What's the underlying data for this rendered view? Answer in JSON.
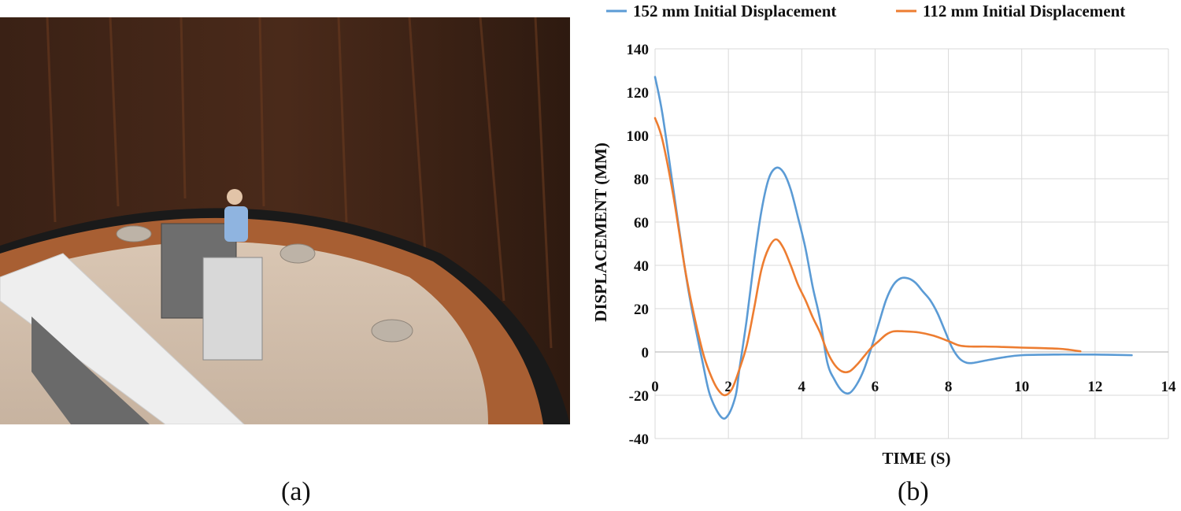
{
  "captions": {
    "a": "(a)",
    "b": "(b)"
  },
  "chart_data": {
    "type": "line",
    "xlabel": "TIME (S)",
    "ylabel": "DISPLACEMENT (MM)",
    "xlim": [
      0,
      14
    ],
    "ylim": [
      -40,
      140
    ],
    "x_ticks": [
      0,
      2,
      4,
      6,
      8,
      10,
      12,
      14
    ],
    "y_ticks": [
      -40,
      -20,
      0,
      20,
      40,
      60,
      80,
      100,
      120,
      140
    ],
    "grid": true,
    "legend_position": "top",
    "series": [
      {
        "name": "152 mm Initial Displacement",
        "color": "#5b9bd5",
        "points": [
          [
            0,
            127
          ],
          [
            0.2,
            110
          ],
          [
            0.5,
            75
          ],
          [
            0.8,
            40
          ],
          [
            1.0,
            20
          ],
          [
            1.3,
            -5
          ],
          [
            1.5,
            -20
          ],
          [
            1.8,
            -30
          ],
          [
            2.0,
            -29
          ],
          [
            2.2,
            -20
          ],
          [
            2.3,
            -8
          ],
          [
            2.5,
            15
          ],
          [
            2.7,
            42
          ],
          [
            2.9,
            65
          ],
          [
            3.1,
            80
          ],
          [
            3.3,
            85
          ],
          [
            3.5,
            83
          ],
          [
            3.7,
            75
          ],
          [
            3.9,
            62
          ],
          [
            4.1,
            48
          ],
          [
            4.3,
            30
          ],
          [
            4.5,
            15
          ],
          [
            4.7,
            -5
          ],
          [
            4.9,
            -13
          ],
          [
            5.1,
            -18
          ],
          [
            5.3,
            -19
          ],
          [
            5.5,
            -15
          ],
          [
            5.7,
            -8
          ],
          [
            5.9,
            2
          ],
          [
            6.1,
            13
          ],
          [
            6.3,
            24
          ],
          [
            6.5,
            31
          ],
          [
            6.7,
            34
          ],
          [
            6.9,
            34
          ],
          [
            7.1,
            32
          ],
          [
            7.3,
            28
          ],
          [
            7.5,
            24
          ],
          [
            7.7,
            18
          ],
          [
            7.9,
            10
          ],
          [
            8.1,
            2
          ],
          [
            8.3,
            -3
          ],
          [
            8.5,
            -5
          ],
          [
            8.7,
            -5
          ],
          [
            9.0,
            -4
          ],
          [
            9.5,
            -2.5
          ],
          [
            10.0,
            -1.5
          ],
          [
            11.0,
            -1.2
          ],
          [
            12.0,
            -1.2
          ],
          [
            13.0,
            -1.5
          ]
        ]
      },
      {
        "name": "112 mm Initial Displacement",
        "color": "#ed7d31",
        "points": [
          [
            0,
            108
          ],
          [
            0.2,
            98
          ],
          [
            0.5,
            72
          ],
          [
            0.8,
            40
          ],
          [
            1.0,
            22
          ],
          [
            1.3,
            0
          ],
          [
            1.5,
            -10
          ],
          [
            1.7,
            -17
          ],
          [
            1.9,
            -20
          ],
          [
            2.1,
            -17
          ],
          [
            2.3,
            -8
          ],
          [
            2.5,
            3
          ],
          [
            2.7,
            20
          ],
          [
            2.9,
            38
          ],
          [
            3.1,
            48
          ],
          [
            3.3,
            52
          ],
          [
            3.5,
            48
          ],
          [
            3.7,
            40
          ],
          [
            3.9,
            31
          ],
          [
            4.1,
            24
          ],
          [
            4.3,
            16
          ],
          [
            4.5,
            9
          ],
          [
            4.7,
            0
          ],
          [
            4.9,
            -6
          ],
          [
            5.1,
            -9
          ],
          [
            5.3,
            -9
          ],
          [
            5.5,
            -6
          ],
          [
            5.7,
            -2
          ],
          [
            5.9,
            2
          ],
          [
            6.1,
            5
          ],
          [
            6.3,
            8
          ],
          [
            6.5,
            9.5
          ],
          [
            6.8,
            9.5
          ],
          [
            7.2,
            9
          ],
          [
            7.6,
            7.5
          ],
          [
            8.0,
            5
          ],
          [
            8.3,
            3
          ],
          [
            8.6,
            2.5
          ],
          [
            9.0,
            2.5
          ],
          [
            9.5,
            2.3
          ],
          [
            10.0,
            2
          ],
          [
            10.5,
            1.8
          ],
          [
            11.0,
            1.5
          ],
          [
            11.3,
            1
          ],
          [
            11.6,
            0.3
          ]
        ]
      }
    ]
  }
}
